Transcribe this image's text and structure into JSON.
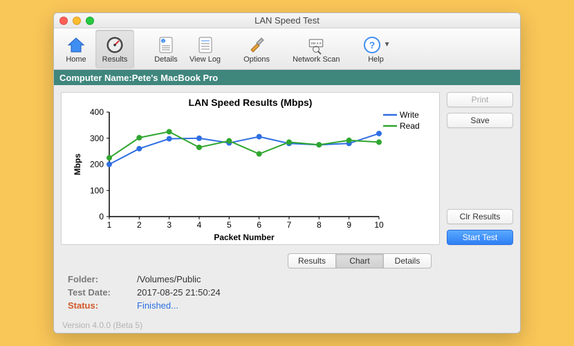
{
  "window": {
    "title": "LAN Speed Test"
  },
  "toolbar": {
    "items": [
      {
        "label": "Home",
        "name": "home-button"
      },
      {
        "label": "Results",
        "name": "results-button",
        "selected": true
      },
      {
        "label": "Details",
        "name": "details-button"
      },
      {
        "label": "View Log",
        "name": "view-log-button"
      },
      {
        "label": "Options",
        "name": "options-button"
      },
      {
        "label": "Network Scan",
        "name": "network-scan-button"
      },
      {
        "label": "Help",
        "name": "help-button"
      }
    ]
  },
  "banner": {
    "prefix": "Computer Name: ",
    "value": "Pete's MacBook Pro"
  },
  "chart": {
    "type": "line",
    "title": "LAN Speed Results (Mbps)",
    "xlabel": "Packet Number",
    "ylabel": "Mbps",
    "xlim": [
      1,
      10
    ],
    "ylim": [
      0,
      400
    ],
    "ytick_step": 100,
    "xticks_labels": [
      "1",
      "2",
      "3",
      "4",
      "5",
      "6",
      "7",
      "8",
      "9",
      "10"
    ],
    "yticks_labels": [
      "0",
      "100",
      "200",
      "300",
      "400"
    ],
    "background_color": "#ffffff",
    "axis_color": "#000000",
    "label_fontsize": 12,
    "title_fontsize": 14,
    "marker": "circle",
    "marker_size": 8,
    "line_width": 2,
    "legend_position": "top-right",
    "series": [
      {
        "name": "Write",
        "color": "#2f6fe3",
        "x": [
          1,
          2,
          3,
          4,
          5,
          6,
          7,
          8,
          9,
          10
        ],
        "y": [
          200,
          260,
          298,
          300,
          282,
          306,
          280,
          275,
          280,
          318
        ]
      },
      {
        "name": "Read",
        "color": "#2fa62f",
        "x": [
          1,
          2,
          3,
          4,
          5,
          6,
          7,
          8,
          9,
          10
        ],
        "y": [
          225,
          302,
          325,
          265,
          290,
          240,
          285,
          275,
          292,
          285
        ]
      }
    ]
  },
  "subtabs": {
    "items": [
      {
        "label": "Results",
        "name": "subtab-results"
      },
      {
        "label": "Chart",
        "name": "subtab-chart",
        "active": true
      },
      {
        "label": "Details",
        "name": "subtab-details"
      }
    ]
  },
  "info": {
    "folder_label": "Folder:",
    "folder_value": "/Volumes/Public",
    "date_label": "Test Date:",
    "date_value": "2017-08-25 21:50:24",
    "status_label": "Status:",
    "status_value": "Finished..."
  },
  "sidebar": {
    "print": "Print",
    "save": "Save",
    "clear": "Clr Results",
    "start": "Start Test"
  },
  "footer": {
    "version": "Version 4.0.0 (Beta 5)"
  }
}
